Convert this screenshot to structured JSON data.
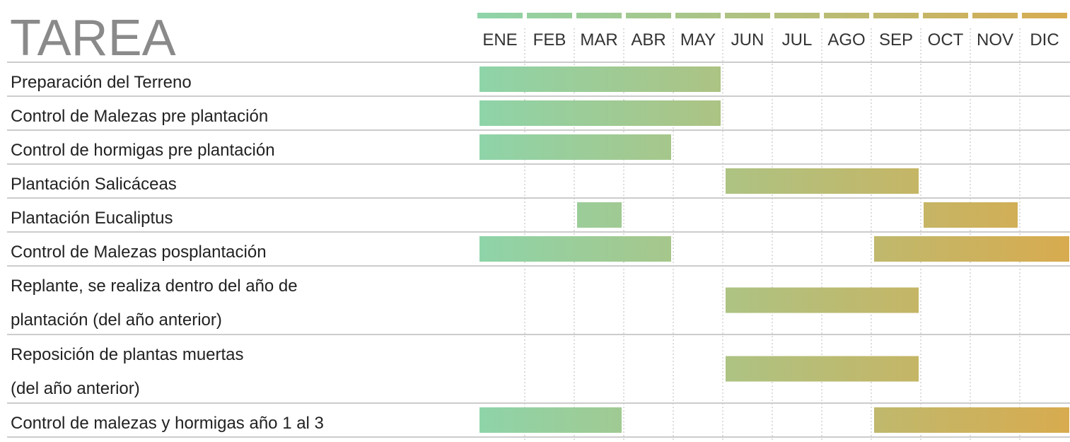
{
  "chart_data": {
    "type": "gantt",
    "title": "TAREA",
    "categories": [
      "ENE",
      "FEB",
      "MAR",
      "ABR",
      "MAY",
      "JUN",
      "JUL",
      "AGO",
      "SEP",
      "OCT",
      "NOV",
      "DIC"
    ],
    "colors": [
      "#8ed4a9",
      "#d8ab4f"
    ],
    "tasks": [
      {
        "label": [
          "Preparación del Terreno"
        ],
        "spans": [
          [
            0,
            5
          ]
        ]
      },
      {
        "label": [
          "Control de Malezas pre plantación"
        ],
        "spans": [
          [
            0,
            5
          ]
        ]
      },
      {
        "label": [
          "Control de hormigas pre plantación"
        ],
        "spans": [
          [
            0,
            4
          ]
        ]
      },
      {
        "label": [
          "Plantación Salicáceas"
        ],
        "spans": [
          [
            5,
            9
          ]
        ]
      },
      {
        "label": [
          "Plantación Eucaliptus"
        ],
        "spans": [
          [
            2,
            3
          ],
          [
            9,
            11
          ]
        ]
      },
      {
        "label": [
          "Control de Malezas posplantación"
        ],
        "spans": [
          [
            0,
            4
          ],
          [
            8,
            12
          ]
        ]
      },
      {
        "label": [
          "Replante, se realiza dentro del año de",
          "plantación (del año anterior)"
        ],
        "spans": [
          [
            5,
            9
          ]
        ]
      },
      {
        "label": [
          "Reposición de plantas muertas",
          "(del año anterior)"
        ],
        "spans": [
          [
            5,
            9
          ]
        ]
      },
      {
        "label": [
          "Control de malezas y hormigas año 1 al 3"
        ],
        "spans": [
          [
            0,
            3
          ],
          [
            8,
            12
          ]
        ]
      }
    ]
  }
}
